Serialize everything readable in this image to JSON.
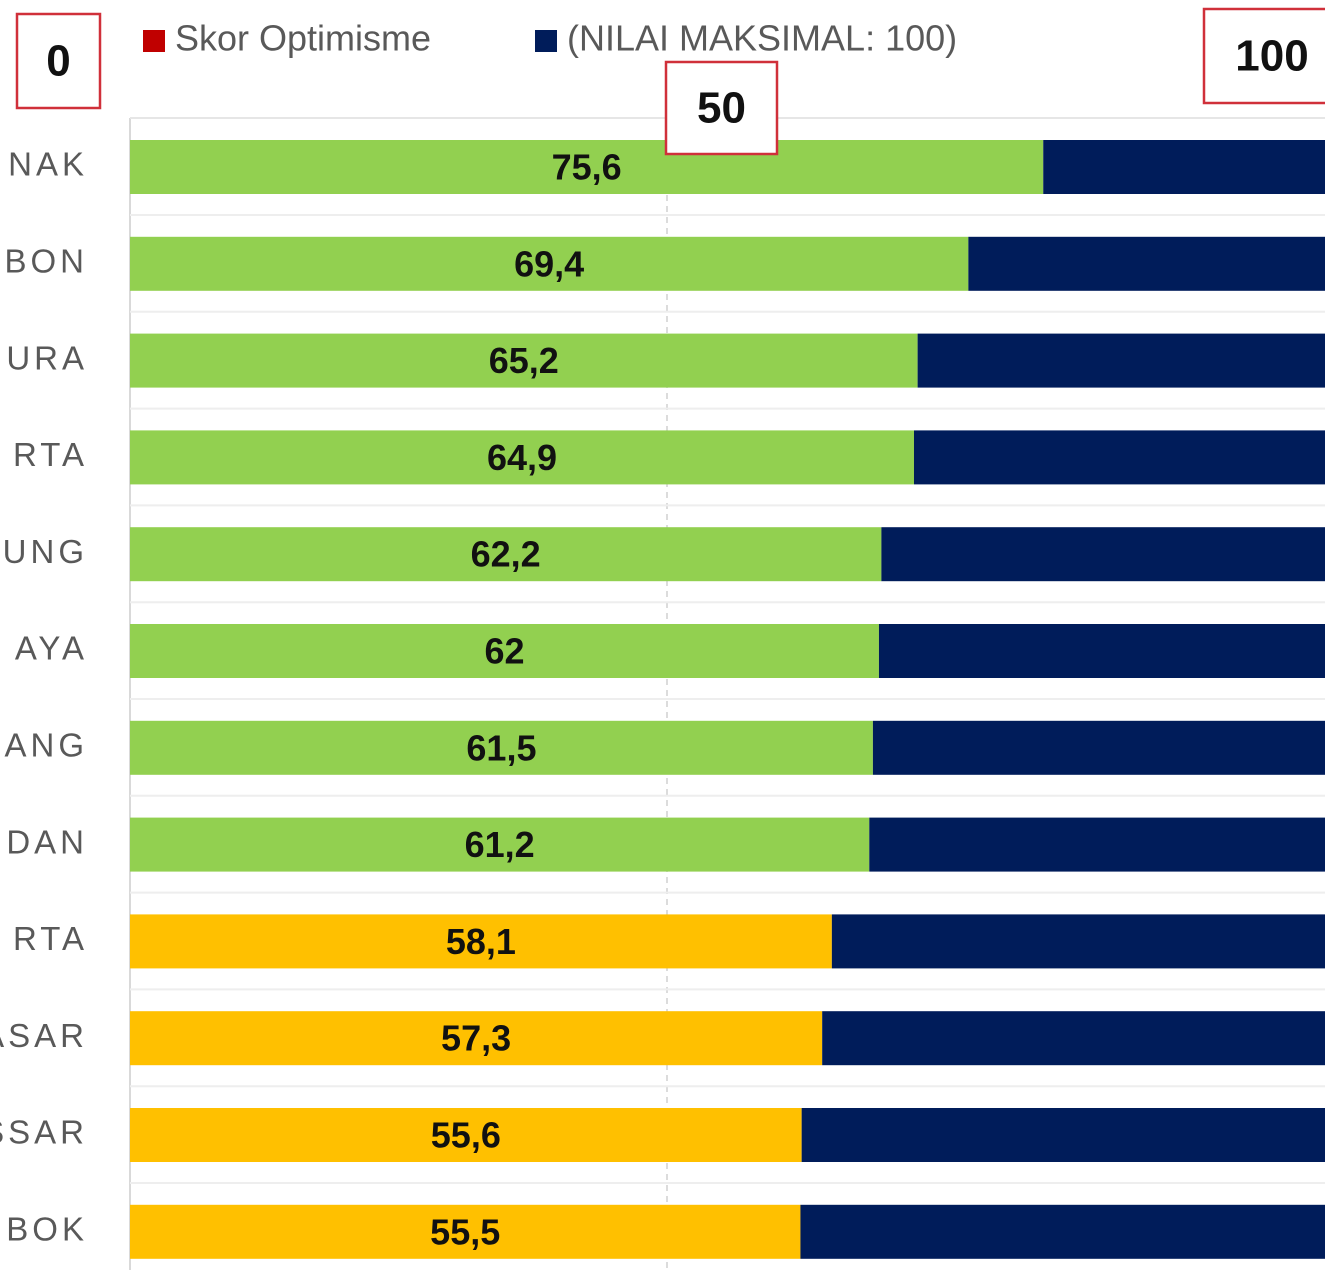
{
  "chart_data": {
    "type": "stacked-bar-horizontal",
    "categories": [
      "NAK",
      "BON",
      "URA",
      "RTA",
      "UNG",
      "AYA",
      "ANG",
      "DAN",
      "RTA",
      "ASAR",
      "SSAR",
      "BOK"
    ],
    "series": [
      {
        "name": "Skor Optimisme",
        "color": "#c00000",
        "bar_colors": [
          "#92d050",
          "#92d050",
          "#92d050",
          "#92d050",
          "#92d050",
          "#92d050",
          "#92d050",
          "#92d050",
          "#ffc000",
          "#ffc000",
          "#ffc000",
          "#ffc000"
        ],
        "values": [
          75.6,
          69.4,
          65.2,
          64.9,
          62.2,
          62,
          61.5,
          61.2,
          58.1,
          57.3,
          55.6,
          55.5
        ],
        "value_labels": [
          "75,6",
          "69,4",
          "65,2",
          "64,9",
          "62,2",
          "62",
          "61,5",
          "61,2",
          "58,1",
          "57,3",
          "55,6",
          "55,5"
        ]
      },
      {
        "name": "(NILAI MAKSIMAL: 100)",
        "color": "#001c5a",
        "values": [
          24.4,
          30.6,
          34.8,
          35.1,
          37.8,
          38,
          38.5,
          38.8,
          41.9,
          42.7,
          44.4,
          44.5
        ]
      }
    ],
    "xlim": [
      0,
      100
    ],
    "annotations": [
      "0",
      "50",
      "100"
    ]
  }
}
